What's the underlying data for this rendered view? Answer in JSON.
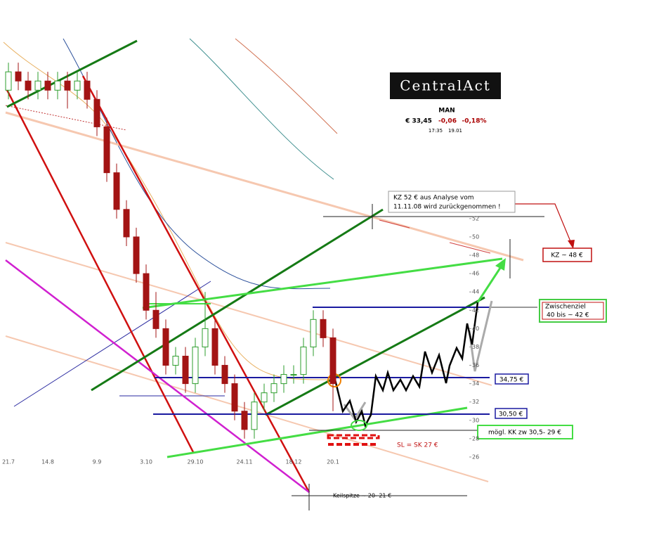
{
  "chart_data": {
    "type": "candlestick",
    "categories": [
      "21.7",
      null,
      null,
      null,
      "14.8",
      null,
      null,
      null,
      null,
      "9.9",
      null,
      null,
      null,
      null,
      "3.10",
      null,
      null,
      null,
      null,
      "29.10",
      null,
      null,
      null,
      null,
      "24.11",
      null,
      null,
      null,
      null,
      "18.12",
      null,
      null,
      null,
      "20.1"
    ],
    "open": [
      66,
      68,
      67,
      66,
      67,
      66,
      67,
      66,
      67,
      65,
      62,
      57,
      53,
      50,
      46,
      42,
      40,
      36,
      37,
      34,
      38,
      40,
      36,
      34,
      31,
      29,
      32,
      33,
      34,
      35,
      35,
      38,
      41,
      39
    ],
    "high": [
      69,
      69,
      68,
      68,
      68,
      68,
      68,
      68,
      68,
      66,
      63,
      58,
      54,
      51,
      47,
      44,
      41,
      38,
      38,
      39,
      44,
      41,
      37,
      35,
      32,
      33,
      34,
      35,
      36,
      36,
      39,
      42,
      42,
      40
    ],
    "low": [
      65,
      66,
      65,
      65,
      65,
      65,
      64,
      65,
      64,
      61,
      56,
      52,
      49,
      45,
      41,
      39,
      35,
      35,
      33,
      33,
      37,
      35,
      33,
      30,
      28,
      28,
      31,
      32,
      33,
      34,
      34,
      37,
      38,
      31
    ],
    "close": [
      68,
      67,
      66,
      67,
      66,
      67,
      66,
      67,
      65,
      62,
      57,
      53,
      50,
      46,
      42,
      40,
      36,
      37,
      34,
      38,
      40,
      36,
      34,
      31,
      29,
      32,
      33,
      34,
      35,
      35,
      38,
      41,
      39,
      34
    ],
    "up_color": "#2e9e2e",
    "down_color": "#a31414",
    "ylim": [
      25,
      72
    ],
    "yticks": [
      26,
      28,
      30,
      32,
      34,
      36,
      38,
      40,
      42,
      44,
      46,
      48,
      50,
      52
    ],
    "logo": "CentralAct",
    "ticker": {
      "name": "MAN",
      "price": "€ 33,45",
      "change": "-0,06",
      "change_pct": "-0,18%",
      "time": "17:35",
      "date": "19.01"
    },
    "annotations": {
      "kz52": [
        "KZ 52 € aus Analyse vom",
        "11.11.08 wird zurückgenommen !"
      ],
      "kz48": "KZ ~ 48 €",
      "zwischenziel": [
        "Zwischenziel",
        "40 bis ~ 42 €"
      ],
      "level1": "34,75 €",
      "level2": "30,50 €",
      "kk": "mögl. KK zw 30,5- 29 €",
      "sl": "SL = SK 27 €",
      "keilspitze": "Keilspitze ~ 20- 21 €"
    }
  }
}
